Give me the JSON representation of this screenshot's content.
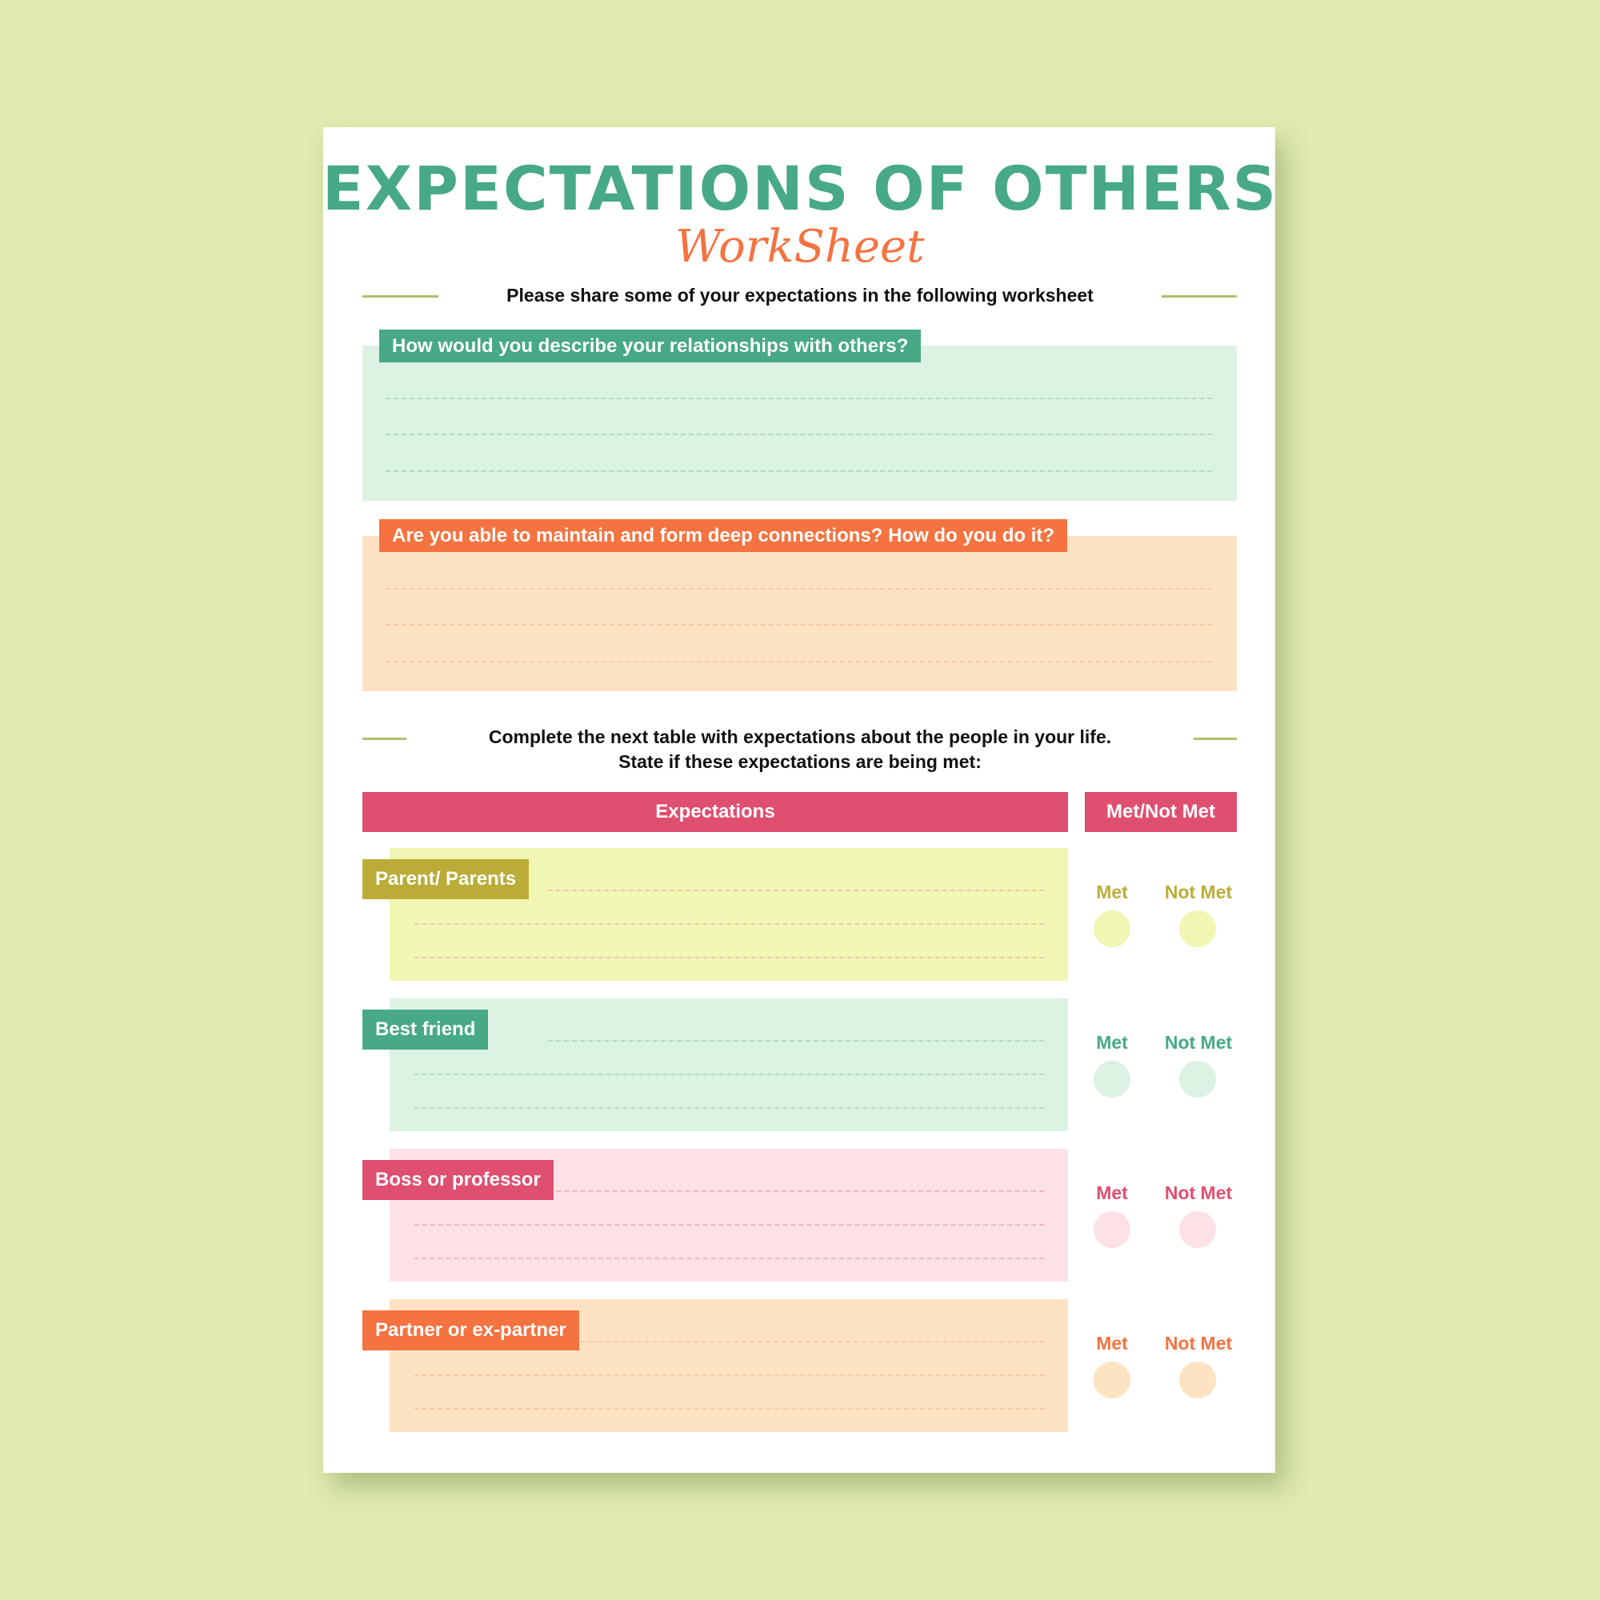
{
  "title": "EXPECTATIONS OF OTHERS",
  "subtitle_script": "WorkSheet",
  "intro": "Please share some of your expectations in the following worksheet",
  "questions": [
    {
      "label": "How would you describe your relationships with others?",
      "label_color": "#47a985",
      "box_color": "#dcf2e3",
      "dash_color": "#b6dcc6"
    },
    {
      "label": "Are you able to maintain and form deep connections? How do you do it?",
      "label_color": "#f47340",
      "box_color": "#fee3c3",
      "dash_color": "#f6c7a4"
    }
  ],
  "table_intro": {
    "line1": "Complete the next table with expectations about the people in your life.",
    "line2": "State if these expectations are being met:"
  },
  "table": {
    "col1": "Expectations",
    "col2": "Met/Not Met",
    "rows": [
      {
        "label": "Parent/ Parents",
        "label_color": "#bbac37",
        "box_color": "#f1f7b3",
        "circle_color": "#f1f7b3",
        "met": "Met",
        "not_met": "Not Met",
        "dash_color": "#e6c9b8"
      },
      {
        "label": "Best friend",
        "label_color": "#47a985",
        "box_color": "#dcf2e3",
        "circle_color": "#dcf2e3",
        "met": "Met",
        "not_met": "Not Met",
        "dash_color": "#b6dcc6"
      },
      {
        "label": "Boss or professor",
        "label_color": "#df4f70",
        "box_color": "#fde2e5",
        "circle_color": "#fde2e5",
        "met": "Met",
        "not_met": "Not Met",
        "dash_color": "#f2b7c1"
      },
      {
        "label": "Partner or ex-partner",
        "label_color": "#f47340",
        "box_color": "#fee3c3",
        "circle_color": "#fee3c3",
        "met": "Met",
        "not_met": "Not Met",
        "dash_color": "#f6c7a4"
      }
    ]
  }
}
